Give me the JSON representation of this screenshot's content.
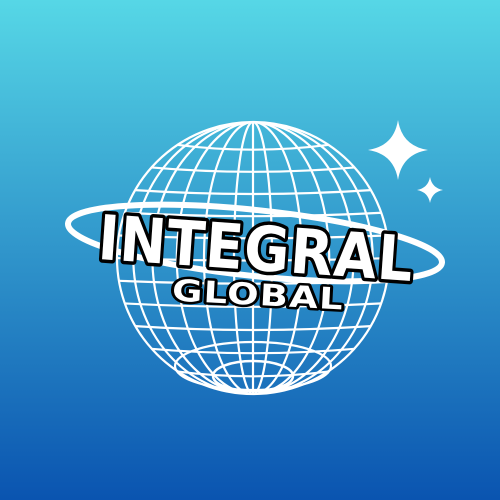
{
  "logo": {
    "title": "INTEGRAL",
    "subtitle": "GLOBAL",
    "emblem_icon": "wireframe-globe-icon",
    "ring_icon": "orbit-ring-icon",
    "sparkle_icons": [
      "sparkle-large-icon",
      "sparkle-small-icon"
    ]
  },
  "colors": {
    "background_top": "#56d7e6",
    "background_bottom": "#0a54b0",
    "line": "#ffffff",
    "text_fill": "#ffffff",
    "text_outline": "#000000"
  }
}
